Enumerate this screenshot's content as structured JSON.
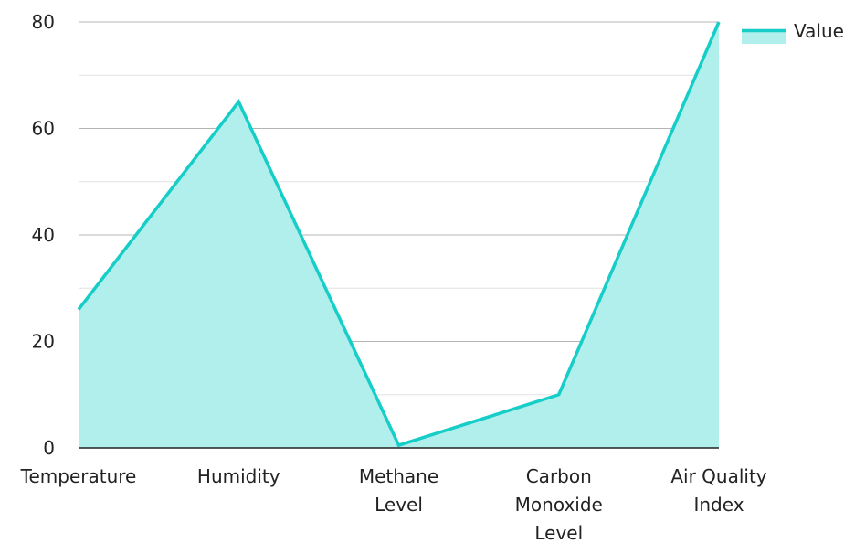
{
  "chart_data": {
    "type": "area",
    "title": "",
    "xlabel": "",
    "ylabel": "",
    "categories": [
      [
        "Temperature"
      ],
      [
        "Humidity"
      ],
      [
        "Methane",
        "Level"
      ],
      [
        "Carbon",
        "Monoxide",
        "Level"
      ],
      [
        "Air Quality",
        "Index"
      ]
    ],
    "series": [
      {
        "name": "Value",
        "values": [
          26,
          65,
          0.5,
          10,
          80
        ]
      }
    ],
    "ylim": [
      0,
      80
    ],
    "yticks": [
      0,
      20,
      40,
      60,
      80
    ],
    "grid": true,
    "legend_position": "top-right",
    "colors": {
      "line": "#16cdc8",
      "fill": "#b1efec",
      "major_grid": "#b4b4b4",
      "minor_grid": "#e2e2e2",
      "axis": "#222222"
    }
  }
}
